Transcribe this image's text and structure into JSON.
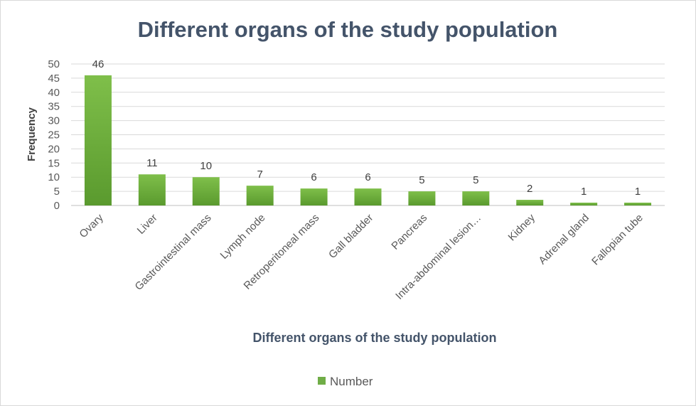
{
  "chart_data": {
    "type": "bar",
    "title": "Different organs of the study population",
    "xlabel": "Different organs of the study population",
    "ylabel": "Frequency",
    "ylim": [
      0,
      50
    ],
    "yticks": [
      0,
      5,
      10,
      15,
      20,
      25,
      30,
      35,
      40,
      45,
      50
    ],
    "grid": true,
    "legend_position": "bottom",
    "categories": [
      "Ovary",
      "Liver",
      "Gastrointestinal mass",
      "Lymph node",
      "Retroperitoneal mass",
      "Gall bladder",
      "Pancreas",
      "Intra-abdominal lesion…",
      "Kidney",
      "Adrenal gland",
      "Fallopian tube"
    ],
    "series": [
      {
        "name": "Number",
        "values": [
          46,
          11,
          10,
          7,
          6,
          6,
          5,
          5,
          2,
          1,
          1
        ],
        "color": "#70ad47"
      }
    ]
  }
}
